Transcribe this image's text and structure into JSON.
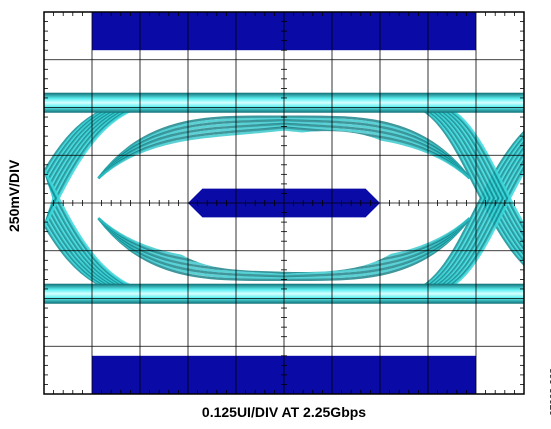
{
  "chart_data": {
    "type": "eye-diagram",
    "title": "",
    "xlabel": "0.125UI/DIV AT 2.25Gbps",
    "ylabel": "250mV/DIV",
    "x_divisions": 10,
    "y_divisions": 8,
    "x_unit_per_div": "0.125UI",
    "y_unit_per_div": "250mV",
    "bit_rate": "2.25Gbps",
    "grid": true,
    "mask": {
      "upper_bar": {
        "x_start_div": 1,
        "x_end_div": 9,
        "y_top_div": 0,
        "y_bottom_div": 0.8
      },
      "lower_bar": {
        "x_start_div": 1,
        "x_end_div": 9,
        "y_top_div": 7.2,
        "y_bottom_div": 8
      },
      "center_hexagon": {
        "x_left_div": 3,
        "x_inner_left_div": 3.3,
        "x_inner_right_div": 6.7,
        "x_right_div": 7,
        "y_top_div": 3.7,
        "y_bottom_div": 4.3
      }
    },
    "eye": {
      "high_level_div": 1.9,
      "low_level_div": 5.9,
      "crossing_left_div": 0.3,
      "crossing_right_div": 9.7
    },
    "colors": {
      "mask": "#0a0aa6",
      "trace": "#2ecfd4",
      "trace_dark": "#0f6e74",
      "grid": "#000000"
    }
  },
  "figure_id": "07003-008"
}
